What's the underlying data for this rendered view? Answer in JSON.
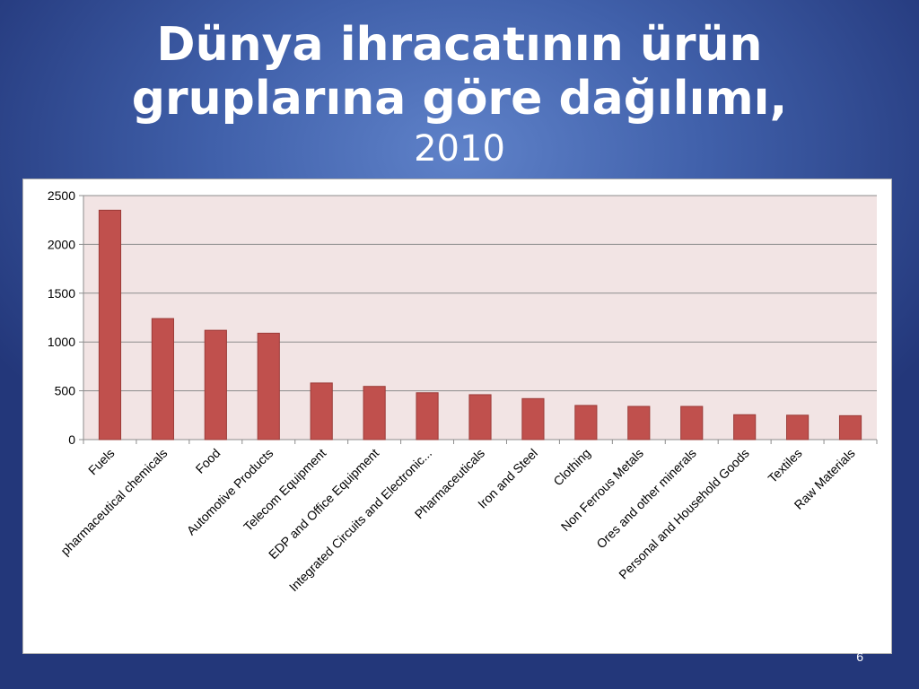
{
  "slide": {
    "title_line1": "Dünya ihracatının ürün",
    "title_line2": "gruplarına göre dağılımı,",
    "title_year": "2010",
    "page_number": "6"
  },
  "colors": {
    "bar": "#c0504d",
    "plot_background": "#f2e4e4",
    "gridline": "#8c8c8c"
  },
  "chart_data": {
    "type": "bar",
    "title": "",
    "xlabel": "",
    "ylabel": "",
    "ylim": [
      0,
      2500
    ],
    "yticks": [
      0,
      500,
      1000,
      1500,
      2000,
      2500
    ],
    "grid": true,
    "legend": "none",
    "categories": [
      "Fuels",
      "pharmaceutical chemicals",
      "Food",
      "Automotive Products",
      "Telecom Equipment",
      "EDP and Office Equipment",
      "Integrated Circuits and Electronic...",
      "Pharmaceuticals",
      "Iron and Steel",
      "Clothing",
      "Non Ferrous Metals",
      "Ores and other minerals",
      "Personal and Household Goods",
      "Textiles",
      "Raw Materials"
    ],
    "values": [
      2350,
      1240,
      1120,
      1090,
      580,
      545,
      480,
      460,
      420,
      350,
      340,
      340,
      255,
      250,
      245
    ]
  }
}
